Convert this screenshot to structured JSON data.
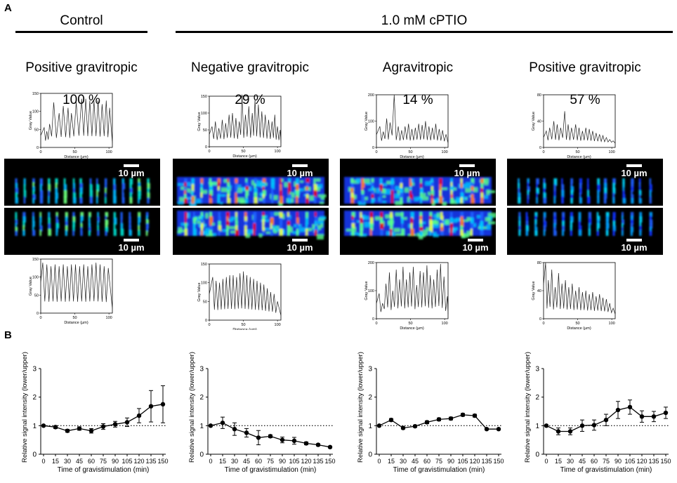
{
  "panel_labels": {
    "a": "A",
    "b": "B"
  },
  "groups": [
    {
      "title": "Control"
    },
    {
      "title": "1.0 mM cPTIO"
    }
  ],
  "conditions": [
    {
      "name": "Positive gravitropic",
      "percent": "100 %"
    },
    {
      "name": "Negative gravitropic",
      "percent": "29 %"
    },
    {
      "name": "Agravitropic",
      "percent": "14 %"
    },
    {
      "name": "Positive gravitropic",
      "percent": "57 %"
    }
  ],
  "scale_bar_label": "10 µm",
  "profile_axis": {
    "ylabel": "Gray Value",
    "xlabel": "Distance (µm)",
    "xticks": [
      0,
      50,
      100
    ]
  },
  "profiles": [
    {
      "name": "control-upper",
      "ymax": 150,
      "yticks": [
        0,
        50,
        100,
        150
      ],
      "peaks": [
        [
          5,
          55
        ],
        [
          9,
          45
        ],
        [
          13,
          65
        ],
        [
          19,
          125
        ],
        [
          27,
          95
        ],
        [
          33,
          115
        ],
        [
          40,
          110
        ],
        [
          45,
          95
        ],
        [
          52,
          125
        ],
        [
          60,
          135
        ],
        [
          66,
          135
        ],
        [
          72,
          130
        ],
        [
          78,
          130
        ],
        [
          84,
          130
        ],
        [
          90,
          120
        ],
        [
          96,
          130
        ],
        [
          101,
          110
        ]
      ]
    },
    {
      "name": "control-lower",
      "ymax": 150,
      "yticks": [
        0,
        50,
        100,
        150
      ],
      "peaks": [
        [
          3,
          140
        ],
        [
          9,
          135
        ],
        [
          15,
          130
        ],
        [
          21,
          135
        ],
        [
          27,
          130
        ],
        [
          33,
          135
        ],
        [
          39,
          130
        ],
        [
          45,
          135
        ],
        [
          51,
          135
        ],
        [
          57,
          130
        ],
        [
          63,
          135
        ],
        [
          69,
          130
        ],
        [
          75,
          135
        ],
        [
          81,
          140
        ],
        [
          87,
          135
        ],
        [
          93,
          130
        ],
        [
          99,
          125
        ]
      ]
    },
    {
      "name": "cptio-negative-upper",
      "ymax": 150,
      "yticks": [
        0,
        50,
        100,
        150
      ],
      "peaks": [
        [
          4,
          60
        ],
        [
          9,
          75
        ],
        [
          14,
          55
        ],
        [
          19,
          80
        ],
        [
          24,
          70
        ],
        [
          29,
          95
        ],
        [
          34,
          100
        ],
        [
          39,
          85
        ],
        [
          44,
          75
        ],
        [
          48,
          155
        ],
        [
          53,
          95
        ],
        [
          58,
          120
        ],
        [
          63,
          100
        ],
        [
          67,
          140
        ],
        [
          72,
          125
        ],
        [
          77,
          105
        ],
        [
          82,
          95
        ],
        [
          87,
          80
        ],
        [
          92,
          75
        ],
        [
          96,
          95
        ],
        [
          100,
          60
        ],
        [
          104,
          50
        ]
      ]
    },
    {
      "name": "cptio-negative-lower",
      "ymax": 150,
      "yticks": [
        0,
        50,
        100,
        150
      ],
      "peaks": [
        [
          5,
          115
        ],
        [
          10,
          105
        ],
        [
          15,
          100
        ],
        [
          20,
          110
        ],
        [
          25,
          115
        ],
        [
          30,
          120
        ],
        [
          35,
          120
        ],
        [
          40,
          115
        ],
        [
          45,
          125
        ],
        [
          50,
          130
        ],
        [
          55,
          120
        ],
        [
          60,
          115
        ],
        [
          65,
          110
        ],
        [
          70,
          105
        ],
        [
          75,
          100
        ],
        [
          80,
          95
        ],
        [
          85,
          85
        ],
        [
          90,
          75
        ],
        [
          95,
          70
        ],
        [
          100,
          50
        ]
      ]
    },
    {
      "name": "cptio-agravitropic-upper",
      "ymax": 200,
      "yticks": [
        0,
        100,
        200
      ],
      "peaks": [
        [
          5,
          80
        ],
        [
          10,
          60
        ],
        [
          15,
          110
        ],
        [
          20,
          95
        ],
        [
          26,
          200
        ],
        [
          32,
          80
        ],
        [
          37,
          65
        ],
        [
          42,
          80
        ],
        [
          47,
          90
        ],
        [
          52,
          70
        ],
        [
          57,
          75
        ],
        [
          62,
          90
        ],
        [
          67,
          85
        ],
        [
          72,
          100
        ],
        [
          77,
          80
        ],
        [
          82,
          75
        ],
        [
          87,
          90
        ],
        [
          92,
          70
        ],
        [
          97,
          65
        ],
        [
          102,
          50
        ]
      ]
    },
    {
      "name": "cptio-agravitropic-lower",
      "ymax": 200,
      "yticks": [
        0,
        100,
        200
      ],
      "peaks": [
        [
          4,
          90
        ],
        [
          9,
          55
        ],
        [
          14,
          125
        ],
        [
          19,
          165
        ],
        [
          24,
          100
        ],
        [
          29,
          175
        ],
        [
          34,
          140
        ],
        [
          39,
          185
        ],
        [
          44,
          140
        ],
        [
          49,
          165
        ],
        [
          54,
          185
        ],
        [
          59,
          120
        ],
        [
          64,
          170
        ],
        [
          69,
          165
        ],
        [
          74,
          190
        ],
        [
          79,
          155
        ],
        [
          84,
          140
        ],
        [
          89,
          175
        ],
        [
          94,
          195
        ],
        [
          99,
          150
        ],
        [
          104,
          80
        ]
      ]
    },
    {
      "name": "cptio-positive-upper",
      "ymax": 80,
      "yticks": [
        0,
        40,
        80
      ],
      "peaks": [
        [
          4,
          25
        ],
        [
          9,
          30
        ],
        [
          15,
          40
        ],
        [
          20,
          35
        ],
        [
          25,
          30
        ],
        [
          31,
          55
        ],
        [
          36,
          35
        ],
        [
          41,
          30
        ],
        [
          47,
          35
        ],
        [
          52,
          30
        ],
        [
          57,
          25
        ],
        [
          62,
          30
        ],
        [
          67,
          28
        ],
        [
          72,
          25
        ],
        [
          77,
          22
        ],
        [
          82,
          20
        ],
        [
          87,
          18
        ],
        [
          92,
          15
        ],
        [
          97,
          12
        ],
        [
          102,
          10
        ]
      ]
    },
    {
      "name": "cptio-positive-lower",
      "ymax": 80,
      "yticks": [
        0,
        40,
        80
      ],
      "peaks": [
        [
          3,
          80
        ],
        [
          7,
          55
        ],
        [
          12,
          70
        ],
        [
          17,
          45
        ],
        [
          22,
          65
        ],
        [
          27,
          50
        ],
        [
          32,
          55
        ],
        [
          37,
          45
        ],
        [
          42,
          50
        ],
        [
          47,
          40
        ],
        [
          52,
          45
        ],
        [
          57,
          38
        ],
        [
          62,
          40
        ],
        [
          67,
          35
        ],
        [
          72,
          38
        ],
        [
          77,
          32
        ],
        [
          82,
          35
        ],
        [
          87,
          30
        ],
        [
          92,
          28
        ],
        [
          97,
          22
        ],
        [
          102,
          15
        ]
      ]
    }
  ],
  "chart_data": [
    {
      "type": "line",
      "title": "Control — Positive gravitropic",
      "xlabel": "Time of gravistimulation (min)",
      "ylabel": "Relative signal intensity (lower/upper)",
      "x": [
        0,
        15,
        30,
        45,
        60,
        75,
        90,
        105,
        120,
        135,
        150
      ],
      "y": [
        1.0,
        0.95,
        0.82,
        0.9,
        0.82,
        0.97,
        1.05,
        1.12,
        1.35,
        1.68,
        1.75
      ],
      "err": [
        0.0,
        0.05,
        0.05,
        0.06,
        0.08,
        0.1,
        0.1,
        0.15,
        0.25,
        0.55,
        0.65
      ],
      "xlim": [
        0,
        150
      ],
      "ylim": [
        0,
        3
      ],
      "yticks": [
        0,
        1,
        2,
        3
      ],
      "reference_line": 1
    },
    {
      "type": "line",
      "title": "1.0 mM cPTIO — Negative gravitropic",
      "xlabel": "Time of gravistimulation (min)",
      "ylabel": "Relative signal intensity (lower/upper)",
      "x": [
        0,
        15,
        30,
        45,
        60,
        75,
        90,
        105,
        120,
        135,
        150
      ],
      "y": [
        1.0,
        1.1,
        0.88,
        0.75,
        0.58,
        0.63,
        0.5,
        0.47,
        0.38,
        0.33,
        0.25
      ],
      "err": [
        0.0,
        0.2,
        0.22,
        0.15,
        0.25,
        0.05,
        0.1,
        0.12,
        0.05,
        0.04,
        0.03
      ],
      "xlim": [
        0,
        150
      ],
      "ylim": [
        0,
        3
      ],
      "yticks": [
        0,
        1,
        2,
        3
      ],
      "reference_line": 1
    },
    {
      "type": "line",
      "title": "1.0 mM cPTIO — Agravitropic",
      "xlabel": "Time of gravistimulation (min)",
      "ylabel": "Relative signal intensity (lower/upper)",
      "x": [
        0,
        15,
        30,
        45,
        60,
        75,
        90,
        105,
        120,
        135,
        150
      ],
      "y": [
        1.0,
        1.2,
        0.92,
        0.98,
        1.12,
        1.22,
        1.25,
        1.38,
        1.35,
        0.88,
        0.88
      ],
      "err": [
        0.0,
        0.05,
        0.04,
        0.04,
        0.05,
        0.05,
        0.05,
        0.05,
        0.05,
        0.03,
        0.03
      ],
      "xlim": [
        0,
        150
      ],
      "ylim": [
        0,
        3
      ],
      "yticks": [
        0,
        1,
        2,
        3
      ],
      "reference_line": 1
    },
    {
      "type": "line",
      "title": "1.0 mM cPTIO — Positive gravitropic",
      "xlabel": "Time of gravistimulation (min)",
      "ylabel": "Relative signal intensity (lower/upper)",
      "x": [
        0,
        15,
        30,
        45,
        60,
        75,
        90,
        105,
        120,
        135,
        150
      ],
      "y": [
        1.0,
        0.8,
        0.8,
        1.0,
        1.02,
        1.2,
        1.55,
        1.65,
        1.32,
        1.32,
        1.45
      ],
      "err": [
        0.0,
        0.12,
        0.12,
        0.2,
        0.18,
        0.2,
        0.3,
        0.25,
        0.2,
        0.18,
        0.2
      ],
      "xlim": [
        0,
        150
      ],
      "ylim": [
        0,
        3
      ],
      "yticks": [
        0,
        1,
        2,
        3
      ],
      "reference_line": 1
    }
  ]
}
